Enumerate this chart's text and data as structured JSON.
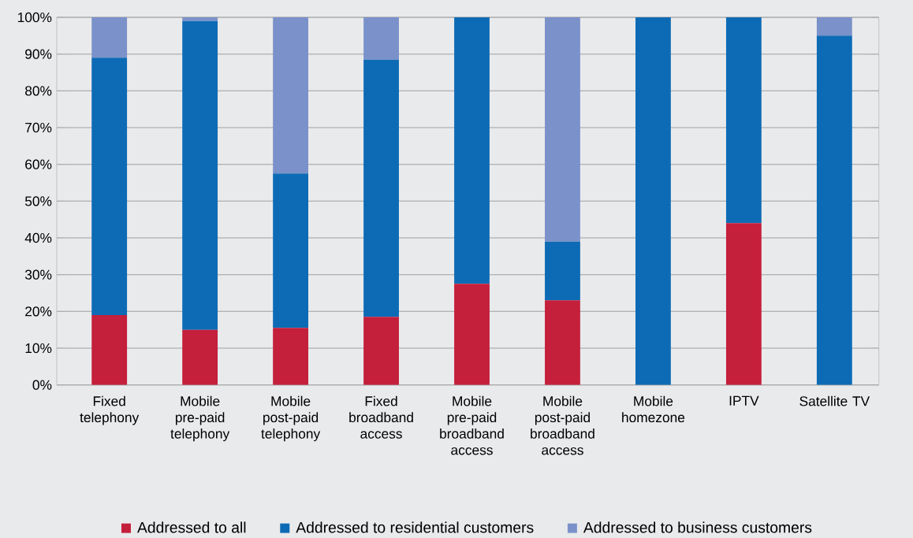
{
  "chart_data": {
    "type": "bar",
    "stacked": true,
    "categories": [
      "Fixed telephony",
      "Mobile pre-paid telephony",
      "Mobile post-paid telephony",
      "Fixed broadband access",
      "Mobile pre-paid broadband access",
      "Mobile post-paid broadband access",
      "Mobile homezone",
      "IPTV",
      "Satellite TV"
    ],
    "series": [
      {
        "name": "Addressed to all",
        "color": "#c41f3b",
        "values": [
          19,
          15,
          15.5,
          18.5,
          27.5,
          23,
          0,
          44,
          0
        ]
      },
      {
        "name": "Addressed to residential customers",
        "color": "#0d6bb5",
        "values": [
          70,
          84,
          42,
          70,
          72.5,
          16,
          100,
          56,
          95
        ]
      },
      {
        "name": "Addressed to business customers",
        "color": "#7b91c9",
        "values": [
          11,
          1,
          42.5,
          11.5,
          0,
          61,
          0,
          0,
          5
        ]
      }
    ],
    "ylim": [
      0,
      100
    ],
    "yticks": [
      {
        "value": 0,
        "label": "0%"
      },
      {
        "value": 10,
        "label": "10%"
      },
      {
        "value": 20,
        "label": "20%"
      },
      {
        "value": 30,
        "label": "30%"
      },
      {
        "value": 40,
        "label": "40%"
      },
      {
        "value": 50,
        "label": "50%"
      },
      {
        "value": 60,
        "label": "60%"
      },
      {
        "value": 70,
        "label": "70%"
      },
      {
        "value": 80,
        "label": "80%"
      },
      {
        "value": 90,
        "label": "90%"
      },
      {
        "value": 100,
        "label": "100%"
      }
    ],
    "grid": "y",
    "legend": "bottom"
  }
}
